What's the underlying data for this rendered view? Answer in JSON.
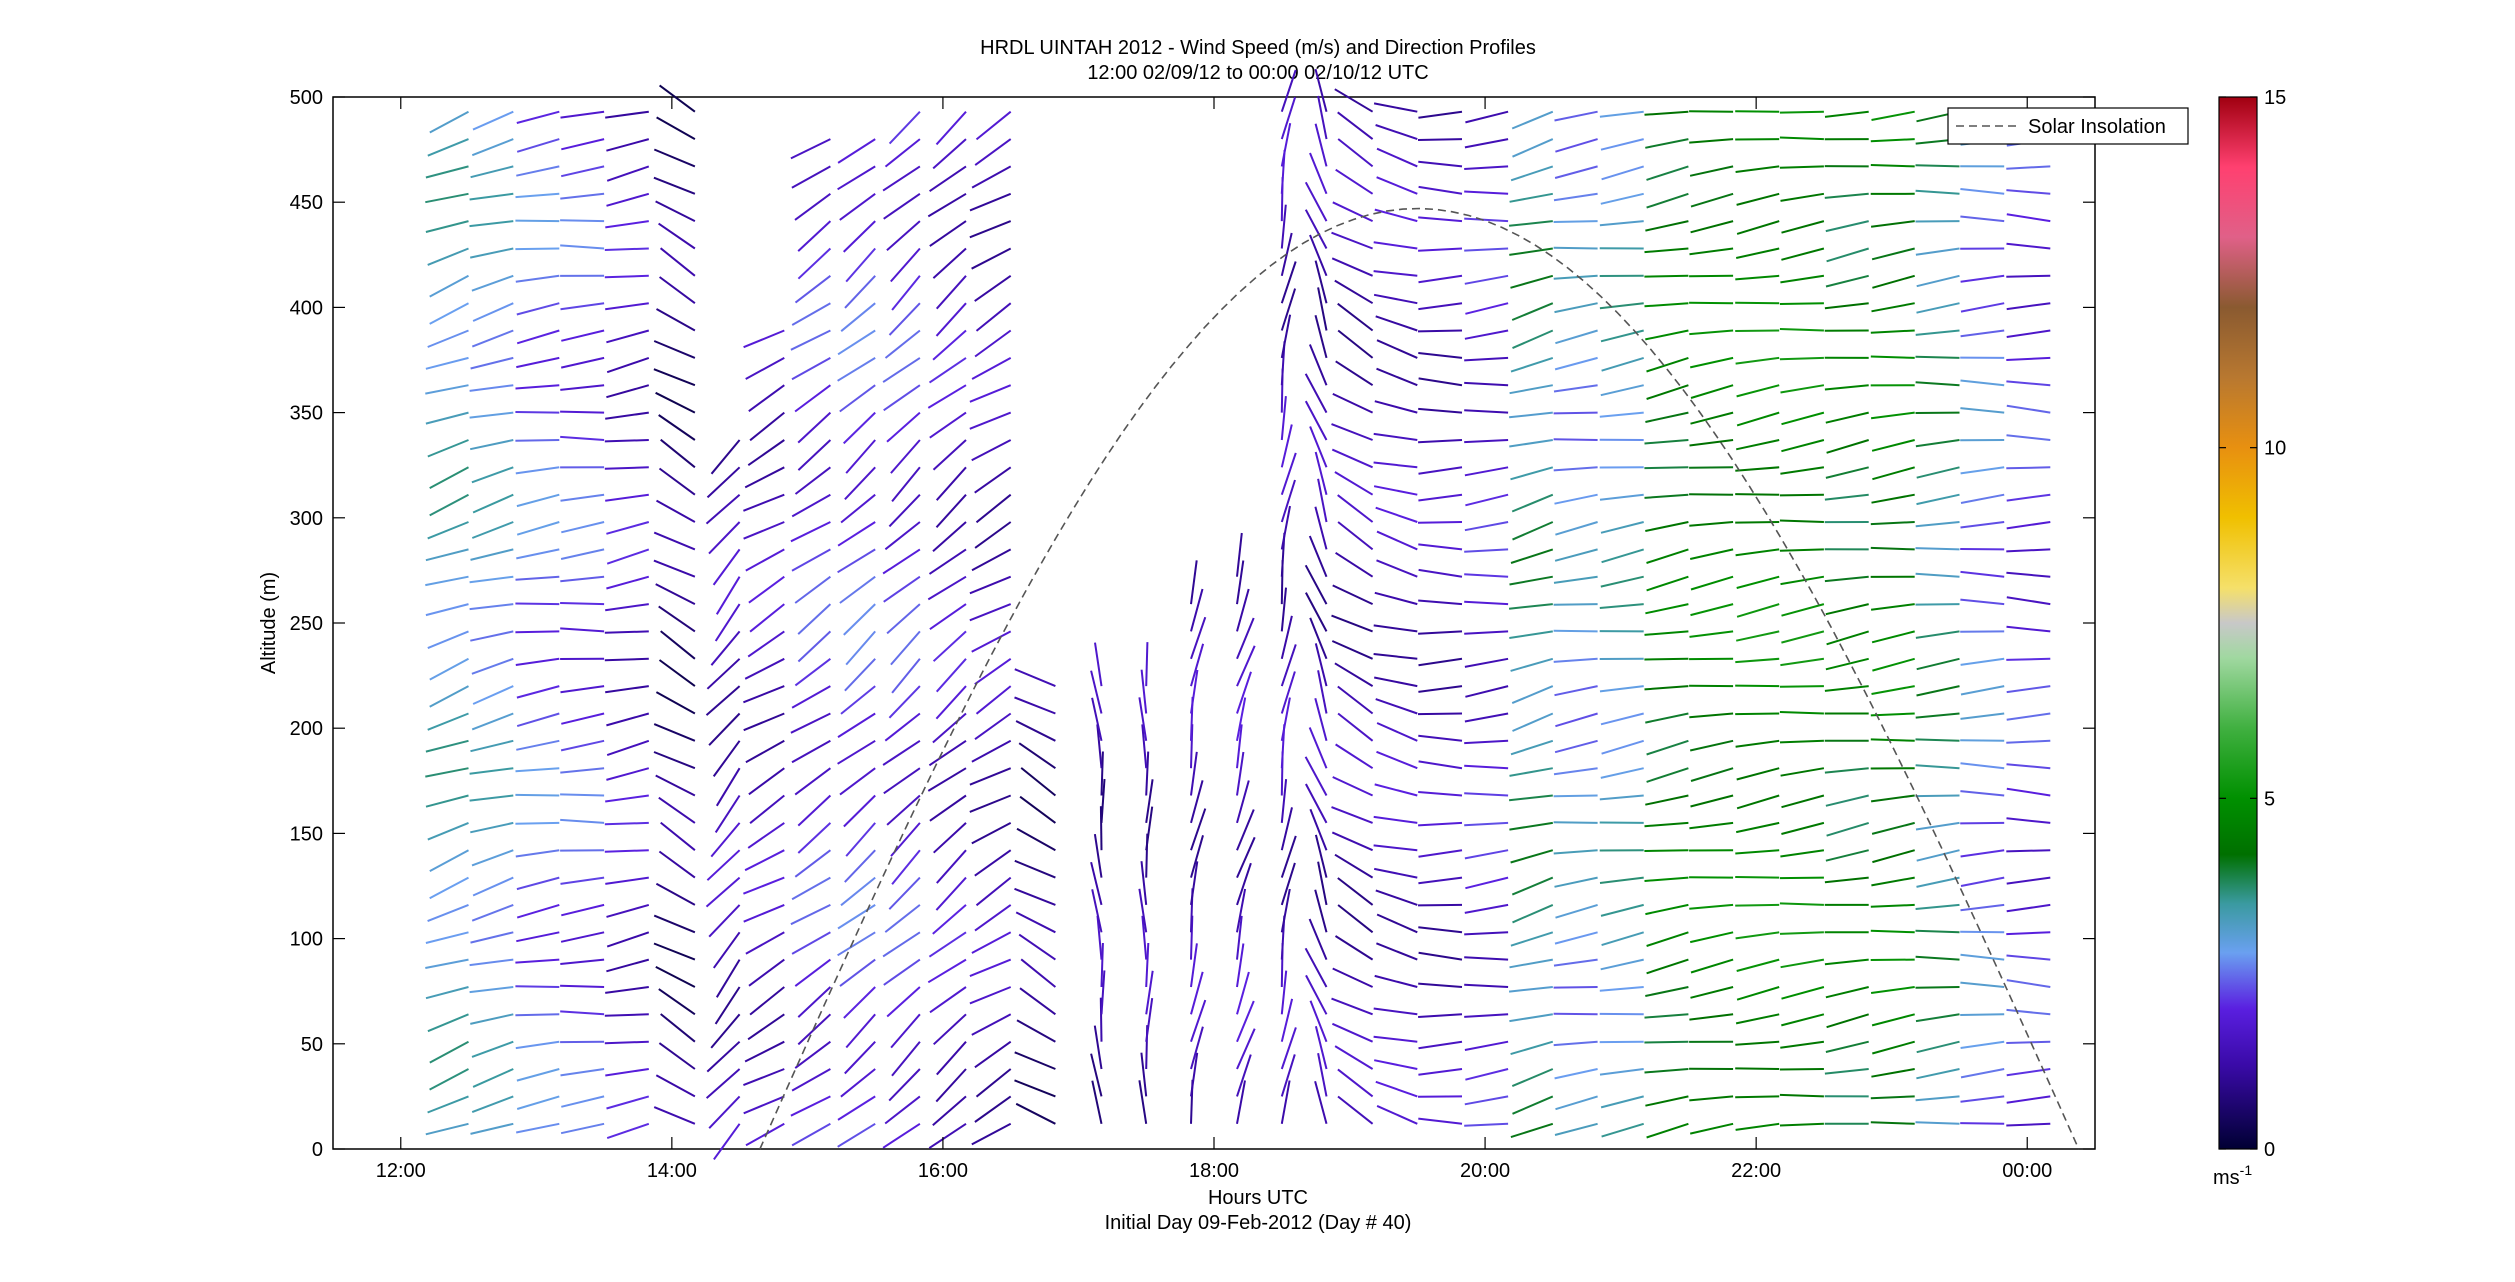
{
  "chart_data": {
    "type": "quiver",
    "title": "HRDL UINTAH 2012 - Wind Speed (m/s) and Direction Profiles",
    "subtitle": "12:00 02/09/12 to 00:00 02/10/12  UTC",
    "xlabel": "Hours UTC",
    "xlabel2": "Initial Day 09-Feb-2012 (Day # 40)",
    "ylabel": "Altitude (m)",
    "xlim": [
      11.5,
      24.5
    ],
    "ylim": [
      0,
      500
    ],
    "xticks": [
      {
        "value": 12,
        "label": "12:00"
      },
      {
        "value": 14,
        "label": "14:00"
      },
      {
        "value": 16,
        "label": "16:00"
      },
      {
        "value": 18,
        "label": "18:00"
      },
      {
        "value": 20,
        "label": "20:00"
      },
      {
        "value": 22,
        "label": "22:00"
      },
      {
        "value": 24,
        "label": "00:00"
      }
    ],
    "yticks": [
      {
        "value": 0,
        "label": "0"
      },
      {
        "value": 50,
        "label": "50"
      },
      {
        "value": 100,
        "label": "100"
      },
      {
        "value": 150,
        "label": "150"
      },
      {
        "value": 200,
        "label": "200"
      },
      {
        "value": 250,
        "label": "250"
      },
      {
        "value": 300,
        "label": "300"
      },
      {
        "value": 350,
        "label": "350"
      },
      {
        "value": 400,
        "label": "400"
      },
      {
        "value": 450,
        "label": "450"
      },
      {
        "value": 500,
        "label": "500"
      }
    ],
    "legend": {
      "label": "Solar Insolation",
      "placement": "top-right"
    },
    "solar_insolation": {
      "start_hour": 14.65,
      "end_hour": 24.38,
      "peak_hour": 19.5,
      "peak_altitude": 447
    },
    "colorbar": {
      "range": [
        0,
        15
      ],
      "ticks": [
        {
          "value": 0,
          "label": "0"
        },
        {
          "value": 5,
          "label": "5"
        },
        {
          "value": 10,
          "label": "10"
        },
        {
          "value": 15,
          "label": "15"
        }
      ],
      "unit_label": "ms",
      "unit_exponent": "-1",
      "stops": [
        {
          "value": 0,
          "color": "#000033"
        },
        {
          "value": 1.2,
          "color": "#3a0aa8"
        },
        {
          "value": 2.0,
          "color": "#5a1fe0"
        },
        {
          "value": 2.8,
          "color": "#6aa0f0"
        },
        {
          "value": 3.5,
          "color": "#3a9aa0"
        },
        {
          "value": 4.2,
          "color": "#007000"
        },
        {
          "value": 5.0,
          "color": "#009000"
        },
        {
          "value": 6.0,
          "color": "#40b040"
        },
        {
          "value": 7.0,
          "color": "#a0d8a0"
        },
        {
          "value": 7.5,
          "color": "#c8c8c8"
        },
        {
          "value": 8.0,
          "color": "#f5e06a"
        },
        {
          "value": 9.0,
          "color": "#f0c000"
        },
        {
          "value": 10.0,
          "color": "#e89010"
        },
        {
          "value": 11.0,
          "color": "#b87830"
        },
        {
          "value": 12.0,
          "color": "#8a5a30"
        },
        {
          "value": 13.0,
          "color": "#e06088"
        },
        {
          "value": 14.0,
          "color": "#ff4070"
        },
        {
          "value": 15.0,
          "color": "#a00010"
        }
      ]
    },
    "profile_hours": [
      12.5,
      12.83,
      13.17,
      13.5,
      13.83,
      14.17,
      14.5,
      14.83,
      15.17,
      15.5,
      15.83,
      16.17,
      16.5,
      16.83,
      17.17,
      17.5,
      17.83,
      18.17,
      18.5,
      18.83,
      19.17,
      19.5,
      19.83,
      20.17,
      20.5,
      20.83,
      21.17,
      21.5,
      21.83,
      22.17,
      22.5,
      22.83,
      23.17,
      23.5,
      23.83,
      24.17
    ],
    "altitudes": [
      12,
      25,
      38,
      51,
      64,
      77,
      90,
      103,
      116,
      129,
      142,
      155,
      168,
      181,
      194,
      207,
      220,
      233,
      246,
      259,
      272,
      285,
      298,
      311,
      324,
      337,
      350,
      363,
      376,
      389,
      402,
      415,
      428,
      441,
      454,
      467,
      480,
      493
    ],
    "profiles": [
      {
        "hour": 12.5,
        "dir": 250,
        "speed": 3.2,
        "ceiling": 493
      },
      {
        "hour": 12.83,
        "dir": 255,
        "speed": 3.0,
        "ceiling": 493
      },
      {
        "hour": 13.17,
        "dir": 262,
        "speed": 2.4,
        "ceiling": 493
      },
      {
        "hour": 13.5,
        "dir": 265,
        "speed": 2.2,
        "ceiling": 493
      },
      {
        "hour": 13.83,
        "dir": 260,
        "speed": 1.6,
        "ceiling": 493
      },
      {
        "hour": 14.17,
        "dir": 300,
        "speed": 0.8,
        "ceiling": 493
      },
      {
        "hour": 14.5,
        "dir": 220,
        "speed": 1.4,
        "ceiling": 340
      },
      {
        "hour": 14.83,
        "dir": 240,
        "speed": 1.5,
        "ceiling": 400
      },
      {
        "hour": 15.17,
        "dir": 235,
        "speed": 2.0,
        "ceiling": 480
      },
      {
        "hour": 15.5,
        "dir": 230,
        "speed": 2.2,
        "ceiling": 480
      },
      {
        "hour": 15.83,
        "dir": 228,
        "speed": 2.0,
        "ceiling": 493
      },
      {
        "hour": 16.17,
        "dir": 230,
        "speed": 1.6,
        "ceiling": 493
      },
      {
        "hour": 16.5,
        "dir": 240,
        "speed": 1.4,
        "ceiling": 493
      },
      {
        "hour": 16.83,
        "dir": 300,
        "speed": 0.9,
        "ceiling": 220
      },
      {
        "hour": 17.17,
        "dir": 355,
        "speed": 1.2,
        "ceiling": 230
      },
      {
        "hour": 17.5,
        "dir": 0,
        "speed": 1.3,
        "ceiling": 220
      },
      {
        "hour": 17.83,
        "dir": 10,
        "speed": 1.4,
        "ceiling": 260
      },
      {
        "hour": 18.17,
        "dir": 15,
        "speed": 1.5,
        "ceiling": 280
      },
      {
        "hour": 18.5,
        "dir": 10,
        "speed": 1.4,
        "ceiling": 493
      },
      {
        "hour": 18.83,
        "dir": 340,
        "speed": 1.3,
        "ceiling": 493
      },
      {
        "hour": 19.17,
        "dir": 300,
        "speed": 1.3,
        "ceiling": 493
      },
      {
        "hour": 19.5,
        "dir": 285,
        "speed": 1.5,
        "ceiling": 493
      },
      {
        "hour": 19.83,
        "dir": 270,
        "speed": 1.4,
        "ceiling": 493
      },
      {
        "hour": 20.17,
        "dir": 265,
        "speed": 1.8,
        "ceiling": 493
      },
      {
        "hour": 20.5,
        "dir": 255,
        "speed": 3.6,
        "ceiling": 493
      },
      {
        "hour": 20.83,
        "dir": 262,
        "speed": 2.8,
        "ceiling": 493
      },
      {
        "hour": 21.17,
        "dir": 262,
        "speed": 3.2,
        "ceiling": 493
      },
      {
        "hour": 21.5,
        "dir": 260,
        "speed": 4.4,
        "ceiling": 493
      },
      {
        "hour": 21.83,
        "dir": 262,
        "speed": 4.6,
        "ceiling": 493
      },
      {
        "hour": 22.17,
        "dir": 262,
        "speed": 4.8,
        "ceiling": 493
      },
      {
        "hour": 22.5,
        "dir": 263,
        "speed": 4.8,
        "ceiling": 493
      },
      {
        "hour": 22.83,
        "dir": 262,
        "speed": 4.2,
        "ceiling": 493
      },
      {
        "hour": 23.17,
        "dir": 263,
        "speed": 4.6,
        "ceiling": 493
      },
      {
        "hour": 23.5,
        "dir": 265,
        "speed": 3.6,
        "ceiling": 493
      },
      {
        "hour": 23.83,
        "dir": 268,
        "speed": 2.6,
        "ceiling": 493
      },
      {
        "hour": 24.17,
        "dir": 270,
        "speed": 2.0,
        "ceiling": 493
      }
    ]
  }
}
